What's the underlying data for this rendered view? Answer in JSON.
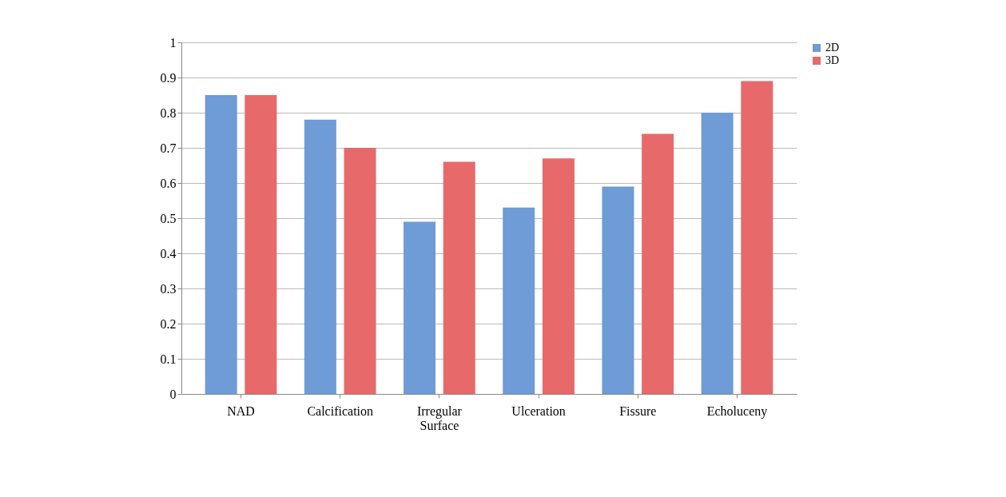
{
  "chart_data": {
    "type": "bar",
    "categories": [
      "NAD",
      "Calcification",
      "Irregular Surface",
      "Ulceration",
      "Fissure",
      "Echoluceny"
    ],
    "series": [
      {
        "name": "2D",
        "color": "#6f9bd6",
        "values": [
          0.85,
          0.78,
          0.49,
          0.53,
          0.59,
          0.8
        ]
      },
      {
        "name": "3D",
        "color": "#e8696a",
        "values": [
          0.85,
          0.7,
          0.66,
          0.67,
          0.74,
          0.89
        ]
      }
    ],
    "ylim": [
      0,
      1
    ],
    "yticks": [
      0,
      0.1,
      0.2,
      0.3,
      0.4,
      0.5,
      0.6,
      0.7,
      0.8,
      0.9,
      1
    ],
    "grid": "y",
    "legend": "right"
  }
}
